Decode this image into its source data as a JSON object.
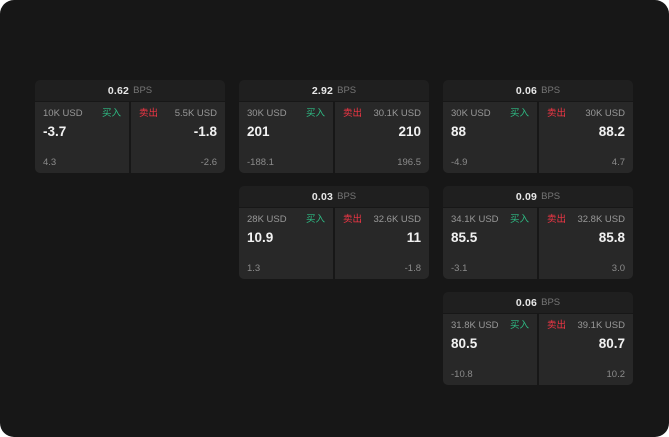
{
  "labels": {
    "bps": "BPS",
    "buy": "买入",
    "sell": "卖出"
  },
  "colors": {
    "buy": "#2ebd85",
    "sell": "#f23645",
    "background": "#171717",
    "panel": "#282828",
    "header": "#1f1f1f"
  },
  "cards": [
    {
      "spread": "0.62",
      "buy": {
        "amount": "10K USD",
        "price": "-3.7",
        "sub": "4.3"
      },
      "sell": {
        "amount": "5.5K USD",
        "price": "-1.8",
        "sub": "-2.6"
      }
    },
    {
      "spread": "2.92",
      "buy": {
        "amount": "30K USD",
        "price": "201",
        "sub": "-188.1"
      },
      "sell": {
        "amount": "30.1K USD",
        "price": "210",
        "sub": "196.5"
      }
    },
    {
      "spread": "0.06",
      "buy": {
        "amount": "30K USD",
        "price": "88",
        "sub": "-4.9"
      },
      "sell": {
        "amount": "30K USD",
        "price": "88.2",
        "sub": "4.7"
      }
    },
    {
      "spread": "0.03",
      "buy": {
        "amount": "28K USD",
        "price": "10.9",
        "sub": "1.3"
      },
      "sell": {
        "amount": "32.6K USD",
        "price": "11",
        "sub": "-1.8"
      }
    },
    {
      "spread": "0.09",
      "buy": {
        "amount": "34.1K USD",
        "price": "85.5",
        "sub": "-3.1"
      },
      "sell": {
        "amount": "32.8K USD",
        "price": "85.8",
        "sub": "3.0"
      }
    },
    {
      "spread": "0.06",
      "buy": {
        "amount": "31.8K USD",
        "price": "80.5",
        "sub": "-10.8"
      },
      "sell": {
        "amount": "39.1K USD",
        "price": "80.7",
        "sub": "10.2"
      }
    }
  ]
}
